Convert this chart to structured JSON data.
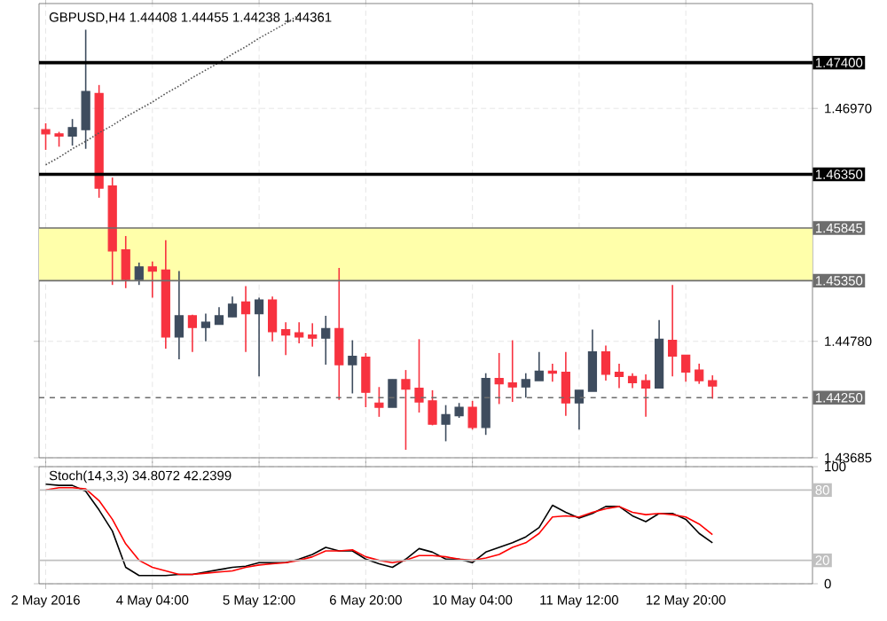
{
  "chart_data": [
    {
      "type": "candlestick",
      "title": "GBPUSD,H4 1.44408 1.44455 1.44238 1.44361",
      "categories": [
        null,
        null,
        null,
        null,
        null,
        null,
        null,
        null,
        null,
        null,
        null,
        null,
        null,
        null,
        null,
        null,
        null,
        null,
        null,
        null,
        null,
        null,
        null,
        null,
        null,
        null,
        null,
        null,
        null,
        null,
        null,
        null,
        null,
        null,
        null,
        null,
        null,
        null,
        null,
        null,
        null,
        null,
        null,
        null,
        null,
        null,
        null,
        null,
        null,
        null,
        null,
        null,
        null,
        null,
        null,
        null,
        null,
        null
      ],
      "ohlc": [
        [
          1.4677,
          1.4683,
          1.4658,
          1.4673
        ],
        [
          1.4673,
          1.4675,
          1.4661,
          1.4671
        ],
        [
          1.4671,
          1.4687,
          1.4662,
          1.4679
        ],
        [
          1.4677,
          1.4771,
          1.4659,
          1.4713
        ],
        [
          1.4711,
          1.4719,
          1.4613,
          1.4622
        ],
        [
          1.4624,
          1.4632,
          1.4531,
          1.4563
        ],
        [
          1.4564,
          1.4577,
          1.4528,
          1.4536
        ],
        [
          1.4536,
          1.4552,
          1.4531,
          1.4548
        ],
        [
          1.4548,
          1.4553,
          1.4519,
          1.4544
        ],
        [
          1.4545,
          1.4573,
          1.4471,
          1.4482
        ],
        [
          1.4482,
          1.4544,
          1.4461,
          1.4502
        ],
        [
          1.4502,
          1.4503,
          1.4468,
          1.4491
        ],
        [
          1.4491,
          1.4504,
          1.4478,
          1.4496
        ],
        [
          1.4494,
          1.451,
          1.4494,
          1.4502
        ],
        [
          1.4501,
          1.452,
          1.4501,
          1.4513
        ],
        [
          1.4515,
          1.453,
          1.4468,
          1.4504
        ],
        [
          1.4504,
          1.4519,
          1.4445,
          1.4517
        ],
        [
          1.4517,
          1.452,
          1.4478,
          1.4487
        ],
        [
          1.4489,
          1.4496,
          1.4465,
          1.4484
        ],
        [
          1.4486,
          1.4496,
          1.4476,
          1.4482
        ],
        [
          1.4484,
          1.4495,
          1.4473,
          1.4481
        ],
        [
          1.4481,
          1.4502,
          1.4456,
          1.449
        ],
        [
          1.449,
          1.4547,
          1.4423,
          1.4456
        ],
        [
          1.4456,
          1.4479,
          1.4429,
          1.4464
        ],
        [
          1.4463,
          1.4467,
          1.4416,
          1.443
        ],
        [
          1.442,
          1.4435,
          1.4407,
          1.4416
        ],
        [
          1.4416,
          1.4442,
          1.4416,
          1.4442
        ],
        [
          1.4442,
          1.4451,
          1.4376,
          1.4433
        ],
        [
          1.4434,
          1.448,
          1.4411,
          1.4421
        ],
        [
          1.4422,
          1.4432,
          1.4399,
          1.44
        ],
        [
          1.44,
          1.4418,
          1.4384,
          1.4409
        ],
        [
          1.4408,
          1.442,
          1.4406,
          1.4416
        ],
        [
          1.4416,
          1.4422,
          1.4395,
          1.4397
        ],
        [
          1.4397,
          1.4448,
          1.439,
          1.4443
        ],
        [
          1.4443,
          1.4467,
          1.4419,
          1.4438
        ],
        [
          1.4439,
          1.4479,
          1.4421,
          1.4435
        ],
        [
          1.4435,
          1.4448,
          1.4425,
          1.4442
        ],
        [
          1.4441,
          1.4468,
          1.4441,
          1.445
        ],
        [
          1.445,
          1.4457,
          1.444,
          1.4448
        ],
        [
          1.4449,
          1.4468,
          1.4408,
          1.442
        ],
        [
          1.442,
          1.4432,
          1.4395,
          1.4432
        ],
        [
          1.4431,
          1.4489,
          1.4431,
          1.4468
        ],
        [
          1.4468,
          1.4474,
          1.4441,
          1.4447
        ],
        [
          1.4449,
          1.4457,
          1.4434,
          1.4445
        ],
        [
          1.4445,
          1.4448,
          1.4434,
          1.4439
        ],
        [
          1.4441,
          1.4447,
          1.4407,
          1.4434
        ],
        [
          1.4434,
          1.4498,
          1.4434,
          1.448
        ],
        [
          1.4479,
          1.4531,
          1.4445,
          1.4464
        ],
        [
          1.4465,
          1.4465,
          1.444,
          1.4449
        ],
        [
          1.4451,
          1.4457,
          1.4438,
          1.4441
        ],
        [
          1.4441,
          1.4446,
          1.4424,
          1.4436
        ],
        null,
        null,
        null,
        null,
        null,
        null,
        null
      ],
      "colors": [
        "#f7323f",
        "#f7323f",
        "#3e4c5e",
        "#3e4c5e",
        "#f7323f",
        "#f7323f",
        "#f7323f",
        "#3e4c5e",
        "#f7323f",
        "#f7323f",
        "#3e4c5e",
        "#f7323f",
        "#3e4c5e",
        "#3e4c5e",
        "#3e4c5e",
        "#f7323f",
        "#3e4c5e",
        "#f7323f",
        "#f7323f",
        "#f7323f",
        "#f7323f",
        "#3e4c5e",
        "#f7323f",
        "#3e4c5e",
        "#f7323f",
        "#f7323f",
        "#3e4c5e",
        "#f7323f",
        "#f7323f",
        "#f7323f",
        "#3e4c5e",
        "#3e4c5e",
        "#f7323f",
        "#3e4c5e",
        "#f7323f",
        "#f7323f",
        "#3e4c5e",
        "#3e4c5e",
        "#f7323f",
        "#f7323f",
        "#3e4c5e",
        "#3e4c5e",
        "#f7323f",
        "#f7323f",
        "#f7323f",
        "#f7323f",
        "#3e4c5e",
        "#f7323f",
        "#f7323f",
        "#f7323f",
        "#f7323f",
        null,
        null,
        null,
        null,
        null,
        null,
        null
      ],
      "series": [
        {
          "type": "line",
          "color": "#555555",
          "line_style": "dotted",
          "values": [
            1.4644,
            1.4651,
            1.4659,
            1.4666,
            1.4674,
            1.4681,
            1.4689,
            1.4696,
            1.4703,
            1.4711,
            1.4718,
            1.4726,
            1.4733,
            1.474,
            1.4748,
            1.4755,
            1.4763,
            1.477,
            1.4777,
            1.4785,
            null,
            null,
            null,
            null,
            null,
            null,
            null,
            null,
            null,
            null,
            null,
            null,
            null,
            null,
            null,
            null,
            null,
            null,
            null,
            null,
            null,
            null,
            null,
            null,
            null,
            null,
            null,
            null,
            null,
            null,
            null,
            null,
            null,
            null,
            null,
            null,
            null,
            null
          ]
        }
      ],
      "ylim": [
        1.43685,
        1.47956
      ],
      "yticks": [
        {
          "value": 1.4697,
          "label": "1.46970"
        },
        {
          "value": 1.4478,
          "label": "1.44780"
        },
        {
          "value": 1.43685,
          "label": "1.43685"
        }
      ],
      "bands": [
        {
          "axis": "y",
          "from": 1.4535,
          "to": 1.45845,
          "color": "#ffffaa"
        }
      ],
      "ref_lines": [
        {
          "axis": "y",
          "value": 1.474,
          "label": "1.47400",
          "color": "#000000"
        },
        {
          "axis": "y",
          "value": 1.4635,
          "label": "1.46350",
          "color": "#000000"
        },
        {
          "axis": "y",
          "value": 1.45845,
          "label": "1.45845",
          "color": "#6d6d6d"
        },
        {
          "axis": "y",
          "value": 1.4535,
          "label": "1.45350",
          "color": "#6d6d6d"
        },
        {
          "axis": "y",
          "value": 1.4425,
          "label": "1.44250",
          "color": "#6d6d6d",
          "line_style": "dashed"
        }
      ],
      "grid": true,
      "tick_labels": "y"
    },
    {
      "type": "line",
      "title": "Stoch(14,3,3) 34.8072 42.2399",
      "categories": [
        "2 May 2016",
        null,
        null,
        null,
        null,
        null,
        null,
        null,
        "4 May 04:00",
        null,
        null,
        null,
        null,
        null,
        null,
        null,
        "5 May 12:00",
        null,
        null,
        null,
        null,
        null,
        null,
        null,
        "6 May 20:00",
        null,
        null,
        null,
        null,
        null,
        null,
        null,
        "10 May 04:00",
        null,
        null,
        null,
        null,
        null,
        null,
        null,
        "11 May 12:00",
        null,
        null,
        null,
        null,
        null,
        null,
        null,
        "12 May 20:00",
        null,
        null,
        null,
        null,
        null,
        null,
        null,
        null,
        null
      ],
      "series": [
        {
          "color": "#000000",
          "values": [
            85,
            84,
            84,
            79,
            63,
            45,
            14,
            7,
            7,
            7,
            8,
            8,
            10,
            12,
            14,
            15,
            18,
            18,
            18,
            21,
            25,
            31,
            28,
            28,
            21,
            17,
            14,
            21,
            30,
            27,
            21,
            21,
            18,
            27,
            31,
            35,
            40,
            48,
            67,
            61,
            56,
            60,
            66,
            66,
            58,
            53,
            60,
            60,
            55,
            43,
            35,
            null,
            null,
            null,
            null,
            null,
            null,
            null
          ]
        },
        {
          "color": "#ff0000",
          "values": [
            80,
            82,
            82,
            81,
            71,
            55,
            34,
            20,
            14,
            11,
            8,
            8,
            9,
            10,
            11,
            14,
            16,
            17,
            18,
            20,
            23,
            28,
            28,
            29,
            23,
            20,
            18,
            20,
            24,
            24,
            23,
            21,
            20,
            22,
            25,
            31,
            35,
            43,
            57,
            58,
            57,
            61,
            64,
            66,
            61,
            59,
            60,
            59,
            57,
            51,
            42,
            null,
            null,
            null,
            null,
            null,
            null,
            null
          ]
        }
      ],
      "ylim": [
        0,
        100
      ],
      "yticks": [
        0,
        100
      ],
      "ref_lines": [
        {
          "axis": "y",
          "value": 80,
          "label": "80",
          "color": "#c0c0c0"
        },
        {
          "axis": "y",
          "value": 20,
          "label": "20",
          "color": "#c0c0c0"
        }
      ],
      "grid": true
    }
  ]
}
